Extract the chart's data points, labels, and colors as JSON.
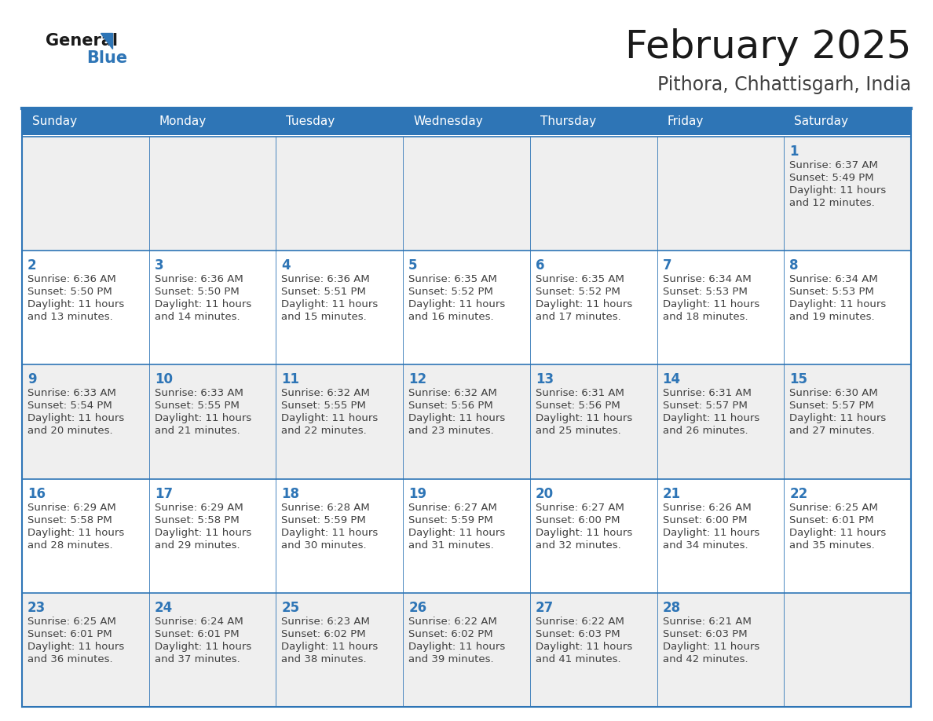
{
  "title": "February 2025",
  "subtitle": "Pithora, Chhattisgarh, India",
  "header_bg": "#2E75B6",
  "header_text": "#FFFFFF",
  "day_names": [
    "Sunday",
    "Monday",
    "Tuesday",
    "Wednesday",
    "Thursday",
    "Friday",
    "Saturday"
  ],
  "bg_color": "#FFFFFF",
  "row_bg": [
    "#EFEFEF",
    "#FFFFFF",
    "#EFEFEF",
    "#FFFFFF",
    "#EFEFEF"
  ],
  "border_color": "#2E75B6",
  "day_num_color": "#2E75B6",
  "text_color": "#404040",
  "logo_general_color": "#1a1a1a",
  "logo_blue_color": "#2E75B6",
  "title_color": "#1a1a1a",
  "subtitle_color": "#404040",
  "calendar": [
    [
      null,
      null,
      null,
      null,
      null,
      null,
      {
        "day": "1",
        "sunrise": "6:37 AM",
        "sunset": "5:49 PM",
        "daylight": "11 hours",
        "daylight2": "and 12 minutes."
      }
    ],
    [
      {
        "day": "2",
        "sunrise": "6:36 AM",
        "sunset": "5:50 PM",
        "daylight": "11 hours",
        "daylight2": "and 13 minutes."
      },
      {
        "day": "3",
        "sunrise": "6:36 AM",
        "sunset": "5:50 PM",
        "daylight": "11 hours",
        "daylight2": "and 14 minutes."
      },
      {
        "day": "4",
        "sunrise": "6:36 AM",
        "sunset": "5:51 PM",
        "daylight": "11 hours",
        "daylight2": "and 15 minutes."
      },
      {
        "day": "5",
        "sunrise": "6:35 AM",
        "sunset": "5:52 PM",
        "daylight": "11 hours",
        "daylight2": "and 16 minutes."
      },
      {
        "day": "6",
        "sunrise": "6:35 AM",
        "sunset": "5:52 PM",
        "daylight": "11 hours",
        "daylight2": "and 17 minutes."
      },
      {
        "day": "7",
        "sunrise": "6:34 AM",
        "sunset": "5:53 PM",
        "daylight": "11 hours",
        "daylight2": "and 18 minutes."
      },
      {
        "day": "8",
        "sunrise": "6:34 AM",
        "sunset": "5:53 PM",
        "daylight": "11 hours",
        "daylight2": "and 19 minutes."
      }
    ],
    [
      {
        "day": "9",
        "sunrise": "6:33 AM",
        "sunset": "5:54 PM",
        "daylight": "11 hours",
        "daylight2": "and 20 minutes."
      },
      {
        "day": "10",
        "sunrise": "6:33 AM",
        "sunset": "5:55 PM",
        "daylight": "11 hours",
        "daylight2": "and 21 minutes."
      },
      {
        "day": "11",
        "sunrise": "6:32 AM",
        "sunset": "5:55 PM",
        "daylight": "11 hours",
        "daylight2": "and 22 minutes."
      },
      {
        "day": "12",
        "sunrise": "6:32 AM",
        "sunset": "5:56 PM",
        "daylight": "11 hours",
        "daylight2": "and 23 minutes."
      },
      {
        "day": "13",
        "sunrise": "6:31 AM",
        "sunset": "5:56 PM",
        "daylight": "11 hours",
        "daylight2": "and 25 minutes."
      },
      {
        "day": "14",
        "sunrise": "6:31 AM",
        "sunset": "5:57 PM",
        "daylight": "11 hours",
        "daylight2": "and 26 minutes."
      },
      {
        "day": "15",
        "sunrise": "6:30 AM",
        "sunset": "5:57 PM",
        "daylight": "11 hours",
        "daylight2": "and 27 minutes."
      }
    ],
    [
      {
        "day": "16",
        "sunrise": "6:29 AM",
        "sunset": "5:58 PM",
        "daylight": "11 hours",
        "daylight2": "and 28 minutes."
      },
      {
        "day": "17",
        "sunrise": "6:29 AM",
        "sunset": "5:58 PM",
        "daylight": "11 hours",
        "daylight2": "and 29 minutes."
      },
      {
        "day": "18",
        "sunrise": "6:28 AM",
        "sunset": "5:59 PM",
        "daylight": "11 hours",
        "daylight2": "and 30 minutes."
      },
      {
        "day": "19",
        "sunrise": "6:27 AM",
        "sunset": "5:59 PM",
        "daylight": "11 hours",
        "daylight2": "and 31 minutes."
      },
      {
        "day": "20",
        "sunrise": "6:27 AM",
        "sunset": "6:00 PM",
        "daylight": "11 hours",
        "daylight2": "and 32 minutes."
      },
      {
        "day": "21",
        "sunrise": "6:26 AM",
        "sunset": "6:00 PM",
        "daylight": "11 hours",
        "daylight2": "and 34 minutes."
      },
      {
        "day": "22",
        "sunrise": "6:25 AM",
        "sunset": "6:01 PM",
        "daylight": "11 hours",
        "daylight2": "and 35 minutes."
      }
    ],
    [
      {
        "day": "23",
        "sunrise": "6:25 AM",
        "sunset": "6:01 PM",
        "daylight": "11 hours",
        "daylight2": "and 36 minutes."
      },
      {
        "day": "24",
        "sunrise": "6:24 AM",
        "sunset": "6:01 PM",
        "daylight": "11 hours",
        "daylight2": "and 37 minutes."
      },
      {
        "day": "25",
        "sunrise": "6:23 AM",
        "sunset": "6:02 PM",
        "daylight": "11 hours",
        "daylight2": "and 38 minutes."
      },
      {
        "day": "26",
        "sunrise": "6:22 AM",
        "sunset": "6:02 PM",
        "daylight": "11 hours",
        "daylight2": "and 39 minutes."
      },
      {
        "day": "27",
        "sunrise": "6:22 AM",
        "sunset": "6:03 PM",
        "daylight": "11 hours",
        "daylight2": "and 41 minutes."
      },
      {
        "day": "28",
        "sunrise": "6:21 AM",
        "sunset": "6:03 PM",
        "daylight": "11 hours",
        "daylight2": "and 42 minutes."
      },
      null
    ]
  ]
}
